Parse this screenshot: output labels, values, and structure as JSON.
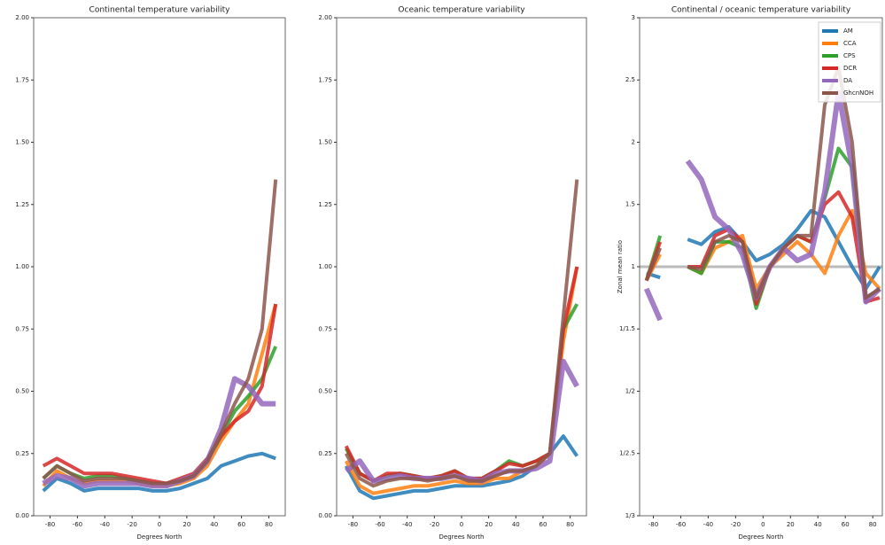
{
  "chart_data": [
    {
      "type": "line",
      "title": "Continental temperature variability",
      "xlabel": "Degrees North",
      "x": [
        -85,
        -75,
        -65,
        -55,
        -45,
        -35,
        -25,
        -15,
        -5,
        5,
        15,
        25,
        35,
        45,
        55,
        65,
        75,
        85
      ],
      "xlim": [
        -92,
        92
      ],
      "xticks": [
        -80,
        -60,
        -40,
        -20,
        0,
        20,
        40,
        60,
        80
      ],
      "ylim": [
        0,
        2
      ],
      "yticks": [
        {
          "value": 0,
          "label": "0.00"
        },
        {
          "value": 0.25,
          "label": "0.25"
        },
        {
          "value": 0.5,
          "label": "0.50"
        },
        {
          "value": 0.75,
          "label": "0.75"
        },
        {
          "value": 1,
          "label": "1.00"
        },
        {
          "value": 1.25,
          "label": "1.25"
        },
        {
          "value": 1.5,
          "label": "1.50"
        },
        {
          "value": 1.75,
          "label": "1.75"
        },
        {
          "value": 2,
          "label": "2.00"
        }
      ],
      "series": [
        {
          "name": "AM",
          "color": "#1f77b4",
          "values": [
            0.1,
            0.15,
            0.13,
            0.1,
            0.11,
            0.11,
            0.11,
            0.11,
            0.1,
            0.1,
            0.11,
            0.13,
            0.15,
            0.2,
            0.22,
            0.24,
            0.25,
            0.23
          ]
        },
        {
          "name": "CCA",
          "color": "#ff7f0e",
          "values": [
            0.12,
            0.18,
            0.15,
            0.13,
            0.14,
            0.14,
            0.14,
            0.13,
            0.12,
            0.12,
            0.13,
            0.15,
            0.2,
            0.3,
            0.38,
            0.45,
            0.65,
            0.85
          ]
        },
        {
          "name": "CPS",
          "color": "#2ca02c",
          "values": [
            0.15,
            0.2,
            0.17,
            0.15,
            0.16,
            0.16,
            0.15,
            0.14,
            0.13,
            0.13,
            0.14,
            0.16,
            0.22,
            0.32,
            0.42,
            0.48,
            0.55,
            0.68
          ]
        },
        {
          "name": "DCR",
          "color": "#d62728",
          "values": [
            0.2,
            0.23,
            0.2,
            0.17,
            0.17,
            0.17,
            0.16,
            0.15,
            0.14,
            0.13,
            0.15,
            0.17,
            0.23,
            0.32,
            0.38,
            0.42,
            0.52,
            0.85
          ]
        },
        {
          "name": "DA",
          "color": "#9467bd",
          "values": [
            0.13,
            0.16,
            0.15,
            0.12,
            0.13,
            0.13,
            0.13,
            0.13,
            0.12,
            0.12,
            0.14,
            0.16,
            0.22,
            0.35,
            0.55,
            0.52,
            0.45,
            0.45
          ]
        },
        {
          "name": "GhcnNOH",
          "color": "#8c564b",
          "values": [
            0.15,
            0.2,
            0.17,
            0.14,
            0.15,
            0.15,
            0.15,
            0.14,
            0.13,
            0.13,
            0.14,
            0.16,
            0.22,
            0.33,
            0.45,
            0.55,
            0.75,
            1.35
          ]
        }
      ]
    },
    {
      "type": "line",
      "title": "Oceanic temperature variability",
      "xlabel": "Degrees North",
      "x": [
        -85,
        -75,
        -65,
        -55,
        -45,
        -35,
        -25,
        -15,
        -5,
        5,
        15,
        25,
        35,
        45,
        55,
        65,
        75,
        85
      ],
      "xlim": [
        -92,
        92
      ],
      "xticks": [
        -80,
        -60,
        -40,
        -20,
        0,
        20,
        40,
        60,
        80
      ],
      "ylim": [
        0,
        2
      ],
      "yticks": [
        {
          "value": 0,
          "label": "0.00"
        },
        {
          "value": 0.25,
          "label": "0.25"
        },
        {
          "value": 0.5,
          "label": "0.50"
        },
        {
          "value": 0.75,
          "label": "0.75"
        },
        {
          "value": 1,
          "label": "1.00"
        },
        {
          "value": 1.25,
          "label": "1.25"
        },
        {
          "value": 1.5,
          "label": "1.50"
        },
        {
          "value": 1.75,
          "label": "1.75"
        },
        {
          "value": 2,
          "label": "2.00"
        }
      ],
      "series": [
        {
          "name": "AM",
          "color": "#1f77b4",
          "values": [
            0.2,
            0.1,
            0.07,
            0.08,
            0.09,
            0.1,
            0.1,
            0.11,
            0.12,
            0.12,
            0.12,
            0.13,
            0.14,
            0.16,
            0.2,
            0.25,
            0.32,
            0.24
          ]
        },
        {
          "name": "CCA",
          "color": "#ff7f0e",
          "values": [
            0.22,
            0.12,
            0.09,
            0.1,
            0.11,
            0.12,
            0.12,
            0.13,
            0.14,
            0.13,
            0.13,
            0.15,
            0.15,
            0.18,
            0.2,
            0.25,
            0.7,
            1.0
          ]
        },
        {
          "name": "CPS",
          "color": "#2ca02c",
          "values": [
            0.27,
            0.17,
            0.14,
            0.16,
            0.17,
            0.16,
            0.15,
            0.16,
            0.18,
            0.15,
            0.15,
            0.18,
            0.22,
            0.2,
            0.22,
            0.25,
            0.75,
            0.85
          ]
        },
        {
          "name": "DCR",
          "color": "#d62728",
          "values": [
            0.28,
            0.17,
            0.14,
            0.17,
            0.17,
            0.16,
            0.15,
            0.16,
            0.18,
            0.15,
            0.15,
            0.18,
            0.21,
            0.2,
            0.22,
            0.25,
            0.75,
            1.0
          ]
        },
        {
          "name": "DA",
          "color": "#9467bd",
          "values": [
            0.18,
            0.22,
            0.14,
            0.15,
            0.16,
            0.15,
            0.15,
            0.15,
            0.16,
            0.15,
            0.14,
            0.17,
            0.18,
            0.18,
            0.19,
            0.22,
            0.62,
            0.52
          ]
        },
        {
          "name": "GhcnNOH",
          "color": "#8c564b",
          "values": [
            0.25,
            0.15,
            0.12,
            0.14,
            0.15,
            0.15,
            0.14,
            0.15,
            0.16,
            0.14,
            0.14,
            0.16,
            0.18,
            0.18,
            0.2,
            0.25,
            0.8,
            1.35
          ]
        }
      ]
    },
    {
      "type": "line",
      "title": "Continental / oceanic temperature variability",
      "xlabel": "Degrees North",
      "ylabel": "Zonal mean ratio",
      "x": [
        -85,
        -75,
        -65,
        -55,
        -45,
        -35,
        -25,
        -15,
        -5,
        5,
        15,
        25,
        35,
        45,
        55,
        65,
        75,
        85
      ],
      "xlim": [
        -90,
        87
      ],
      "xticks": [
        -80,
        -60,
        -40,
        -20,
        0,
        20,
        40,
        60,
        80
      ],
      "yscale": "ratio",
      "ylim": [
        0.3333,
        3
      ],
      "yticks": [
        {
          "value": 0.3333,
          "label": "1/3"
        },
        {
          "value": 0.4,
          "label": "1/2.5"
        },
        {
          "value": 0.5,
          "label": "1/2"
        },
        {
          "value": 0.6667,
          "label": "1/1.5"
        },
        1,
        1.5,
        2,
        2.5,
        3
      ],
      "hline": 1,
      "hline_color": "#bbbbbb",
      "legend": "upper-right",
      "series": [
        {
          "name": "AM",
          "color": "#1f77b4",
          "values": [
            0.95,
            0.92,
            null,
            1.22,
            1.18,
            1.28,
            1.32,
            1.2,
            1.05,
            1.1,
            1.18,
            1.3,
            1.45,
            1.4,
            1.2,
            1.0,
            0.85,
            1.0
          ]
        },
        {
          "name": "CCA",
          "color": "#ff7f0e",
          "values": [
            0.9,
            1.1,
            null,
            1.0,
            0.95,
            1.15,
            1.2,
            1.25,
            0.85,
            1.0,
            1.1,
            1.2,
            1.1,
            0.95,
            1.25,
            1.45,
            0.95,
            0.85
          ]
        },
        {
          "name": "CPS",
          "color": "#2ca02c",
          "values": [
            0.9,
            1.25,
            null,
            1.0,
            0.95,
            1.2,
            1.2,
            1.15,
            0.75,
            1.0,
            1.15,
            1.25,
            1.2,
            1.55,
            1.95,
            1.8,
            0.8,
            0.85
          ]
        },
        {
          "name": "DCR",
          "color": "#d62728",
          "values": [
            0.9,
            1.2,
            null,
            1.0,
            1.0,
            1.25,
            1.3,
            1.2,
            0.77,
            1.0,
            1.15,
            1.25,
            1.2,
            1.5,
            1.6,
            1.4,
            0.78,
            0.8
          ]
        },
        {
          "name": "DA",
          "color": "#9467bd",
          "values": [
            0.85,
            0.7,
            null,
            1.85,
            1.7,
            1.4,
            1.3,
            1.1,
            0.8,
            1.0,
            1.15,
            1.05,
            1.1,
            1.6,
            2.4,
            1.8,
            0.78,
            0.85
          ]
        },
        {
          "name": "GhcnNOH",
          "color": "#8c564b",
          "values": [
            0.9,
            1.15,
            null,
            1.0,
            0.98,
            1.2,
            1.25,
            1.2,
            0.8,
            1.0,
            1.15,
            1.25,
            1.25,
            2.3,
            2.6,
            2.0,
            0.8,
            0.85
          ]
        }
      ]
    }
  ]
}
